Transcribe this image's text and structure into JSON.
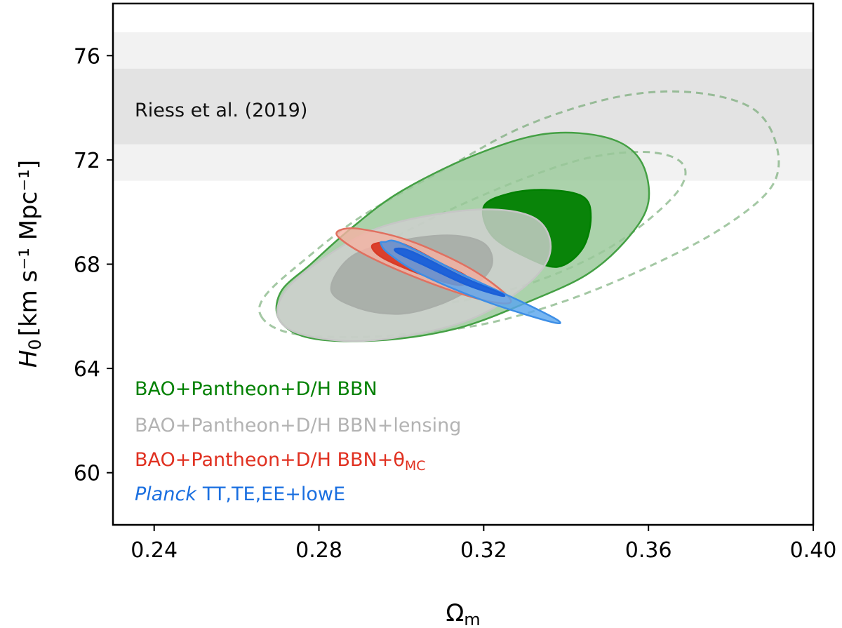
{
  "chart_data": {
    "type": "contour",
    "xlabel_main": "Ω",
    "xlabel_sub": "m",
    "ylabel_main": "H",
    "ylabel_sub": "0",
    "ylabel_units": "[km s⁻¹ Mpc⁻¹]",
    "xlim": [
      0.23,
      0.4
    ],
    "ylim": [
      58,
      78
    ],
    "xticks": [
      0.24,
      0.28,
      0.32,
      0.36,
      0.4
    ],
    "xtick_labels": [
      "0.24",
      "0.28",
      "0.32",
      "0.36",
      "0.40"
    ],
    "yticks": [
      60,
      64,
      68,
      72,
      76
    ],
    "ytick_labels": [
      "60",
      "64",
      "68",
      "72",
      "76"
    ],
    "band": {
      "label": "Riess et al. (2019)",
      "center": 74.03,
      "sigma1": [
        72.6,
        75.5
      ],
      "sigma2": [
        71.2,
        76.9
      ],
      "inner_color": "#e3e3e3",
      "outer_color": "#f2f2f2"
    },
    "series": [
      {
        "name": "BAO+Pantheon+D/H BBN (dashed, alternate)",
        "color": "#5a9a5a",
        "style": "dashed",
        "contours": [
          {
            "level": "2σ",
            "points": [
              [
                0.266,
                66.0
              ],
              [
                0.272,
                65.4
              ],
              [
                0.285,
                65.2
              ],
              [
                0.3,
                65.3
              ],
              [
                0.32,
                65.7
              ],
              [
                0.34,
                66.6
              ],
              [
                0.36,
                67.9
              ],
              [
                0.378,
                69.4
              ],
              [
                0.39,
                71.0
              ],
              [
                0.391,
                72.6
              ],
              [
                0.385,
                74.0
              ],
              [
                0.37,
                74.6
              ],
              [
                0.352,
                74.4
              ],
              [
                0.33,
                73.3
              ],
              [
                0.31,
                71.6
              ],
              [
                0.29,
                69.8
              ],
              [
                0.276,
                68.1
              ],
              [
                0.267,
                66.8
              ]
            ]
          },
          {
            "level": "1σ",
            "points": [
              [
                0.284,
                66.9
              ],
              [
                0.29,
                66.5
              ],
              [
                0.3,
                66.4
              ],
              [
                0.315,
                66.6
              ],
              [
                0.332,
                67.3
              ],
              [
                0.348,
                68.4
              ],
              [
                0.36,
                69.7
              ],
              [
                0.368,
                71.0
              ],
              [
                0.368,
                71.9
              ],
              [
                0.36,
                72.3
              ],
              [
                0.346,
                72.1
              ],
              [
                0.33,
                71.3
              ],
              [
                0.312,
                70.1
              ],
              [
                0.297,
                68.9
              ],
              [
                0.287,
                67.9
              ],
              [
                0.283,
                67.3
              ]
            ]
          }
        ]
      },
      {
        "name": "BAO+Pantheon+D/H BBN",
        "color": "#008000",
        "style": "solid",
        "contours": [
          {
            "level": "2σ",
            "points": [
              [
                0.27,
                66.0
              ],
              [
                0.275,
                65.3
              ],
              [
                0.285,
                65.05
              ],
              [
                0.3,
                65.15
              ],
              [
                0.315,
                65.6
              ],
              [
                0.33,
                66.5
              ],
              [
                0.345,
                67.6
              ],
              [
                0.355,
                69.0
              ],
              [
                0.36,
                70.4
              ],
              [
                0.358,
                72.0
              ],
              [
                0.35,
                72.85
              ],
              [
                0.335,
                73.0
              ],
              [
                0.318,
                72.2
              ],
              [
                0.3,
                70.8
              ],
              [
                0.288,
                69.4
              ],
              [
                0.278,
                68.0
              ],
              [
                0.271,
                67.0
              ]
            ],
            "fill": "#99c899",
            "stroke": "#44a044"
          },
          {
            "level": "1σ",
            "points": [
              [
                0.322,
                69.1
              ],
              [
                0.33,
                68.3
              ],
              [
                0.338,
                67.9
              ],
              [
                0.344,
                68.6
              ],
              [
                0.346,
                69.8
              ],
              [
                0.344,
                70.6
              ],
              [
                0.335,
                70.85
              ],
              [
                0.326,
                70.7
              ],
              [
                0.32,
                70.2
              ]
            ],
            "fill": "#008000",
            "stroke": "#008000"
          }
        ]
      },
      {
        "name": "BAO+Pantheon+D/H BBN+lensing",
        "color": "#b3b3b3",
        "style": "solid",
        "contours": [
          {
            "level": "2σ",
            "points": [
              [
                0.27,
                66.0
              ],
              [
                0.275,
                65.35
              ],
              [
                0.288,
                65.05
              ],
              [
                0.303,
                65.3
              ],
              [
                0.317,
                65.9
              ],
              [
                0.328,
                66.9
              ],
              [
                0.335,
                68.0
              ],
              [
                0.336,
                69.0
              ],
              [
                0.332,
                69.8
              ],
              [
                0.322,
                70.1
              ],
              [
                0.308,
                69.9
              ],
              [
                0.293,
                69.3
              ],
              [
                0.28,
                68.1
              ],
              [
                0.272,
                67.0
              ]
            ],
            "fill": "#cfcfcf",
            "stroke": "#c6c6c6"
          },
          {
            "level": "1σ",
            "points": [
              [
                0.283,
                67.0
              ],
              [
                0.29,
                66.3
              ],
              [
                0.3,
                66.1
              ],
              [
                0.31,
                66.5
              ],
              [
                0.318,
                67.2
              ],
              [
                0.322,
                68.0
              ],
              [
                0.32,
                68.8
              ],
              [
                0.312,
                69.1
              ],
              [
                0.3,
                68.9
              ],
              [
                0.288,
                68.3
              ]
            ],
            "fill": "#a9aea9",
            "stroke": "#a9aea9"
          }
        ]
      },
      {
        "name": "BAO+Pantheon+D/H BBN+θ_MC",
        "color": "#e03020",
        "style": "solid",
        "contours": [
          {
            "level": "2σ",
            "points": [
              [
                0.285,
                69.3
              ],
              [
                0.29,
                69.35
              ],
              [
                0.302,
                68.9
              ],
              [
                0.316,
                67.9
              ],
              [
                0.325,
                66.9
              ],
              [
                0.326,
                66.5
              ],
              [
                0.318,
                66.7
              ],
              [
                0.305,
                67.4
              ],
              [
                0.292,
                68.3
              ],
              [
                0.285,
                69.0
              ]
            ],
            "fill": "#f4b2a3",
            "stroke": "#e07060"
          },
          {
            "level": "1σ",
            "points": [
              [
                0.294,
                68.8
              ],
              [
                0.3,
                68.8
              ],
              [
                0.31,
                68.0
              ],
              [
                0.316,
                67.5
              ],
              [
                0.314,
                67.2
              ],
              [
                0.305,
                67.6
              ],
              [
                0.296,
                68.2
              ],
              [
                0.293,
                68.6
              ]
            ],
            "fill": "#d93a26",
            "stroke": "#d93a26"
          }
        ]
      },
      {
        "name": "Planck TT,TE,EE+lowE",
        "color": "#1a6fe0",
        "style": "solid",
        "contours": [
          {
            "level": "2σ",
            "points": [
              [
                0.296,
                68.85
              ],
              [
                0.3,
                68.8
              ],
              [
                0.315,
                67.6
              ],
              [
                0.33,
                66.5
              ],
              [
                0.338,
                65.85
              ],
              [
                0.336,
                65.8
              ],
              [
                0.32,
                66.6
              ],
              [
                0.305,
                67.6
              ],
              [
                0.297,
                68.4
              ],
              [
                0.295,
                68.8
              ]
            ],
            "fill": "#5aa6ee",
            "stroke": "#3d8ee6"
          },
          {
            "level": "1σ",
            "points": [
              [
                0.299,
                68.6
              ],
              [
                0.303,
                68.45
              ],
              [
                0.315,
                67.5
              ],
              [
                0.324,
                66.9
              ],
              [
                0.324,
                66.8
              ],
              [
                0.316,
                67.2
              ],
              [
                0.305,
                68.0
              ],
              [
                0.299,
                68.45
              ]
            ],
            "fill": "#1a5fd8",
            "stroke": "#1a5fd8"
          }
        ]
      }
    ],
    "legend": [
      {
        "text": "BAO+Pantheon+D/H BBN",
        "color": "#008000"
      },
      {
        "text": "BAO+Pantheon+D/H BBN+lensing",
        "color": "#b3b3b3"
      },
      {
        "text": "BAO+Pantheon+D/H BBN+θ",
        "sub": "MC",
        "color": "#e03020"
      },
      {
        "italic": "Planck",
        "text": "TT,TE,EE+lowE",
        "color": "#1a6fe0"
      }
    ],
    "legend_placement": "lower-left",
    "grid": false
  }
}
